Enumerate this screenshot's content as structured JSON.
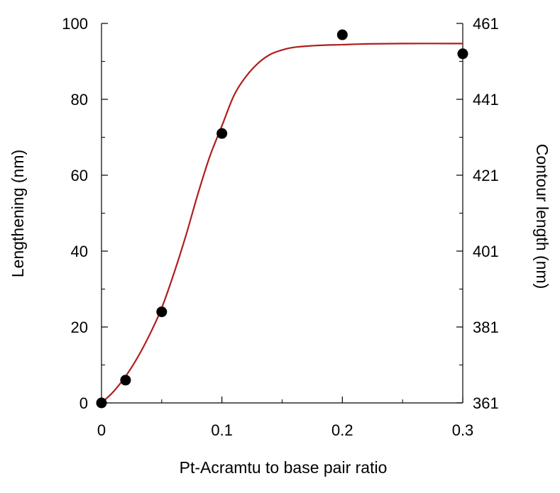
{
  "chart_data": {
    "type": "scatter",
    "title": "",
    "xlabel": "Pt-Acramtu to base pair ratio",
    "ylabel": "Lengthening (nm)",
    "y2label": "Contour length (nm)",
    "xlim": [
      0,
      0.3
    ],
    "ylim": [
      0,
      100
    ],
    "y2lim": [
      361,
      461
    ],
    "x_ticks": [
      {
        "value": 0,
        "label": "0"
      },
      {
        "value": 0.1,
        "label": "0.1"
      },
      {
        "value": 0.2,
        "label": "0.2"
      },
      {
        "value": 0.3,
        "label": "0.3"
      }
    ],
    "y_ticks": [
      {
        "value": 0,
        "label": "0"
      },
      {
        "value": 20,
        "label": "20"
      },
      {
        "value": 40,
        "label": "40"
      },
      {
        "value": 60,
        "label": "60"
      },
      {
        "value": 80,
        "label": "80"
      },
      {
        "value": 100,
        "label": "100"
      }
    ],
    "y2_ticks": [
      {
        "value": 361,
        "label": "361"
      },
      {
        "value": 381,
        "label": "381"
      },
      {
        "value": 401,
        "label": "401"
      },
      {
        "value": 421,
        "label": "421"
      },
      {
        "value": 441,
        "label": "441"
      },
      {
        "value": 461,
        "label": "461"
      }
    ],
    "grid": false,
    "series": [
      {
        "kind": "points",
        "color": "#000000",
        "x": [
          0,
          0.02,
          0.05,
          0.1,
          0.2,
          0.3
        ],
        "y": [
          0,
          6,
          24,
          71,
          97,
          92
        ]
      },
      {
        "kind": "fit-curve",
        "color": "#b01e1e",
        "x": [
          0,
          0.01,
          0.02,
          0.03,
          0.04,
          0.05,
          0.06,
          0.07,
          0.08,
          0.09,
          0.1,
          0.11,
          0.12,
          0.13,
          0.14,
          0.15,
          0.16,
          0.18,
          0.2,
          0.22,
          0.25,
          0.3
        ],
        "y": [
          0,
          3,
          7,
          12,
          18,
          25,
          34,
          44,
          55,
          65,
          73,
          81,
          86,
          89.5,
          91.8,
          93,
          93.7,
          94.2,
          94.4,
          94.6,
          94.7,
          94.7
        ]
      }
    ]
  }
}
